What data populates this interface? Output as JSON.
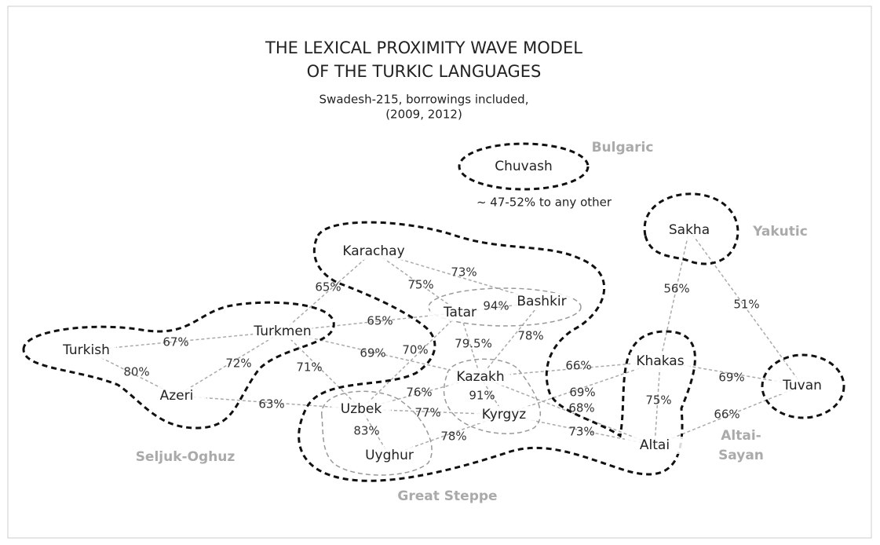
{
  "header": {
    "title": [
      "THE LEXICAL PROXIMITY WAVE MODEL",
      "OF THE TURKIC LANGUAGES"
    ],
    "subtitle": [
      "Swadesh-215, borrowings included,",
      "(2009, 2012)"
    ]
  },
  "note": "~ 47-52% to any other",
  "groups": [
    {
      "label": [
        "Bulgaric"
      ]
    },
    {
      "label": [
        "Yakutic"
      ]
    },
    {
      "label": [
        "Seljuk-Oghuz"
      ]
    },
    {
      "label": [
        "Great Steppe"
      ]
    },
    {
      "label": [
        "Altai-",
        "Sayan"
      ]
    }
  ],
  "nodes": [
    {
      "label": "Chuvash"
    },
    {
      "label": "Sakha"
    },
    {
      "label": "Karachay"
    },
    {
      "label": "Tatar"
    },
    {
      "label": "Bashkir"
    },
    {
      "label": "Turkmen"
    },
    {
      "label": "Turkish"
    },
    {
      "label": "Azeri"
    },
    {
      "label": "Kazakh"
    },
    {
      "label": "Kyrgyz"
    },
    {
      "label": "Uzbek"
    },
    {
      "label": "Uyghur"
    },
    {
      "label": "Khakas"
    },
    {
      "label": "Tuvan"
    },
    {
      "label": "Altai"
    }
  ],
  "edges": [
    {
      "label": "65%"
    },
    {
      "label": "75%"
    },
    {
      "label": "73%"
    },
    {
      "label": "94%"
    },
    {
      "label": "65%"
    },
    {
      "label": "67%"
    },
    {
      "label": "72%"
    },
    {
      "label": "80%"
    },
    {
      "label": "69%"
    },
    {
      "label": "70%"
    },
    {
      "label": "79.5%"
    },
    {
      "label": "78%"
    },
    {
      "label": "71%"
    },
    {
      "label": "66%"
    },
    {
      "label": "56%"
    },
    {
      "label": "51%"
    },
    {
      "label": "69%"
    },
    {
      "label": "91%"
    },
    {
      "label": "76%"
    },
    {
      "label": "77%"
    },
    {
      "label": "69%"
    },
    {
      "label": "68%"
    },
    {
      "label": "75%"
    },
    {
      "label": "66%"
    },
    {
      "label": "63%"
    },
    {
      "label": "83%"
    },
    {
      "label": "78%"
    },
    {
      "label": "73%"
    }
  ]
}
